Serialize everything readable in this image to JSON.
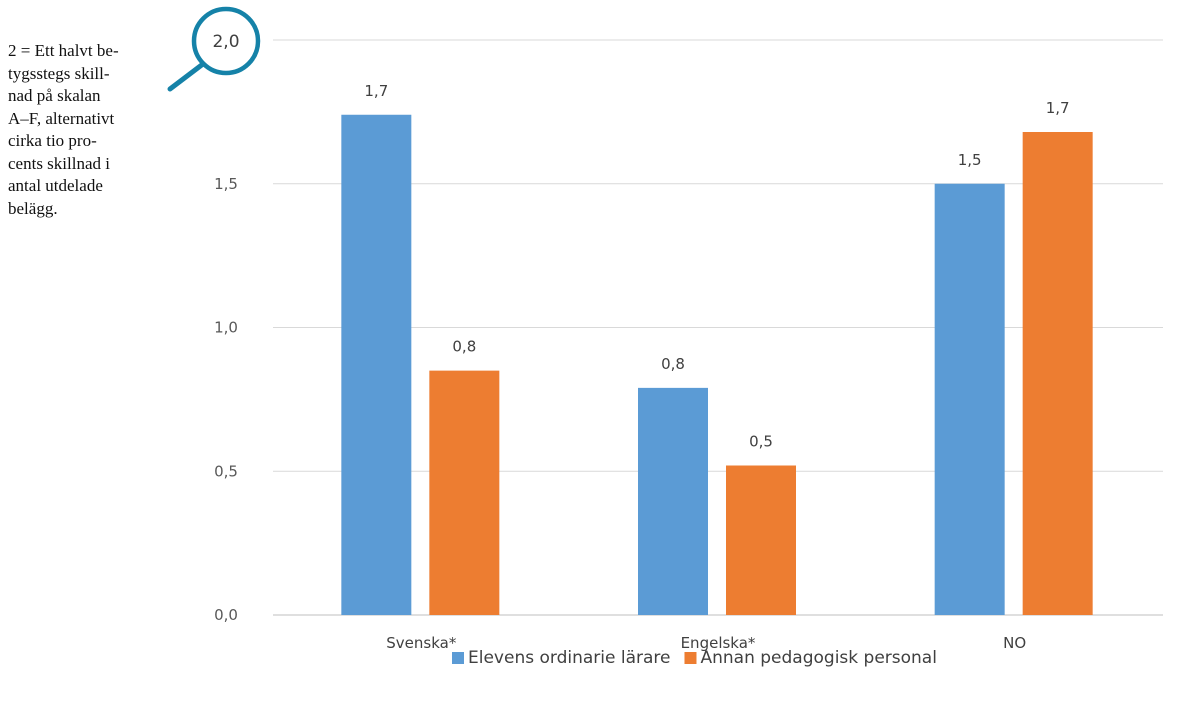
{
  "annotation": {
    "lines": [
      "2 = Ett halvt be-",
      "tygsstegs skill-",
      "nad på skalan",
      "A–F, alternativt",
      "cirka tio pro-",
      "cents skillnad i",
      "antal utdelade",
      "belägg."
    ]
  },
  "chart_data": {
    "type": "bar",
    "categories": [
      "Svenska*",
      "Engelska*",
      "NO"
    ],
    "series": [
      {
        "name": "Elevens ordinarie lärare",
        "color": "#5b9bd5",
        "values": [
          1.74,
          0.79,
          1.5
        ],
        "labels": [
          "1,7",
          "0,8",
          "1,5"
        ]
      },
      {
        "name": "Annan pedagogisk personal",
        "color": "#ed7d31",
        "values": [
          0.85,
          0.52,
          1.68
        ],
        "labels": [
          "0,8",
          "0,5",
          "1,7"
        ]
      }
    ],
    "ylim": [
      0,
      2.0
    ],
    "yticks": [
      {
        "value": 0,
        "label": "0,0"
      },
      {
        "value": 0.5,
        "label": "0,5"
      },
      {
        "value": 1.0,
        "label": "1,0"
      },
      {
        "value": 1.5,
        "label": "1,5"
      },
      {
        "value": 2.0,
        "label": "2,0"
      }
    ],
    "grid": true,
    "legend_position": "bottom",
    "highlight_tick": {
      "label": "2,0",
      "icon": "magnifier-icon",
      "color": "#1582a8"
    }
  }
}
